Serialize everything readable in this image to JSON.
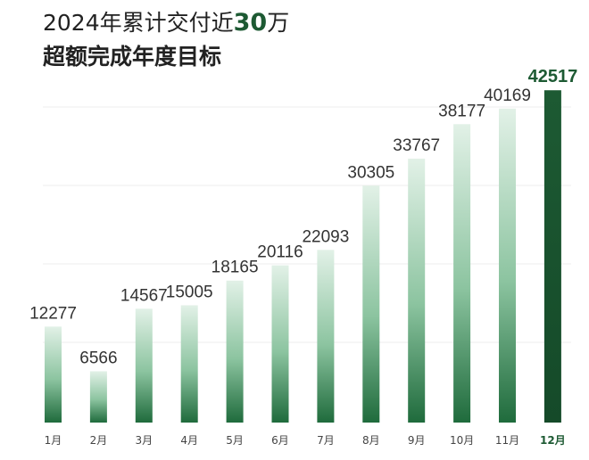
{
  "title": {
    "part1": "2024年累计交付近",
    "highlight": "30",
    "part2": "万",
    "line2": "超额完成年度目标"
  },
  "colors": {
    "dark_green": "#1d5a33",
    "bar_top_light": "#dcefe3",
    "bar_bottom": "#1f6b3c"
  },
  "chart_data": {
    "type": "bar",
    "categories": [
      "1月",
      "2月",
      "3月",
      "4月",
      "5月",
      "6月",
      "7月",
      "8月",
      "9月",
      "10月",
      "11月",
      "12月"
    ],
    "values": [
      12277,
      6566,
      14567,
      15005,
      18165,
      20116,
      22093,
      30305,
      33767,
      38177,
      40169,
      42517
    ],
    "title": "2024年累计交付近30万 超额完成年度目标",
    "ylim": [
      0,
      43000
    ],
    "grid": true,
    "highlight_category": "12月"
  }
}
